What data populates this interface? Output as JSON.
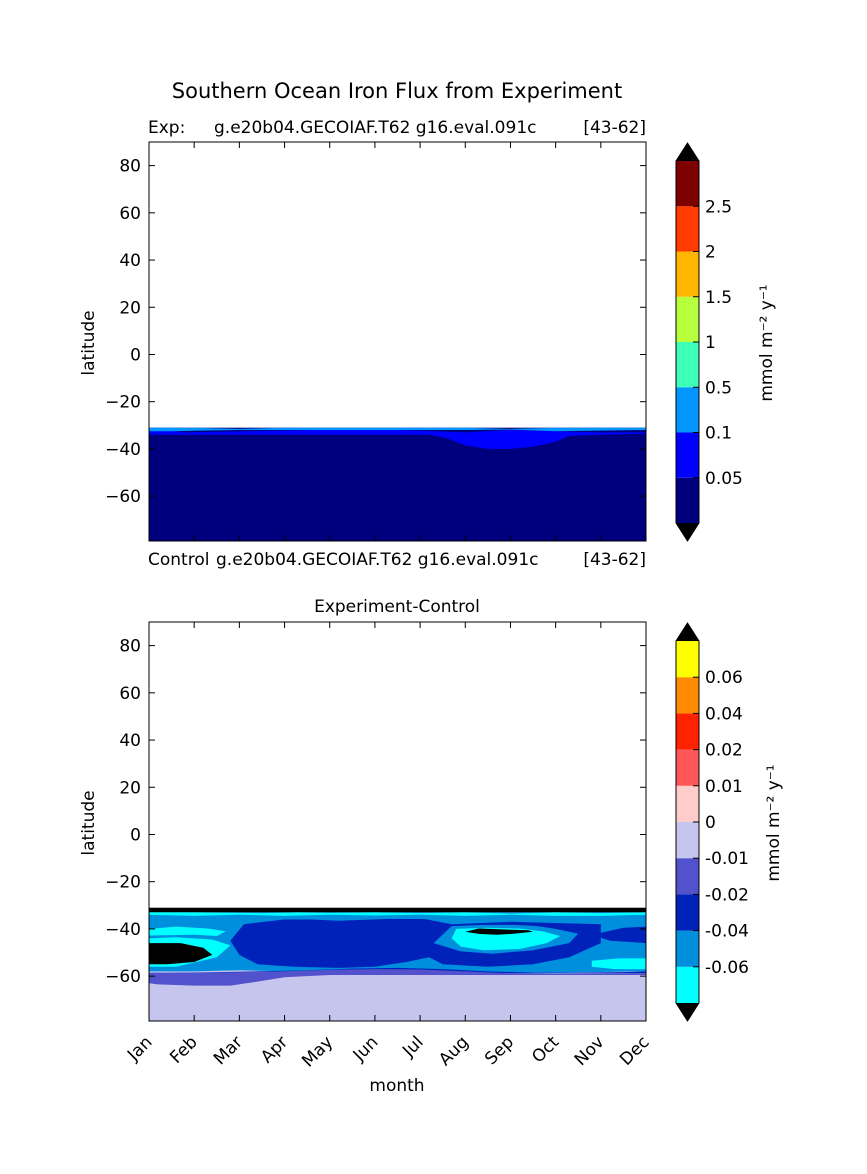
{
  "figure": {
    "suptitle": "Southern Ocean Iron Flux from Experiment"
  },
  "chart_data": [
    {
      "type": "heatmap",
      "panel": "top",
      "title_left": "Exp:",
      "title_center": "g.e20b04.GECOIAF.T62 g16.eval.091c",
      "title_right": "[43-62]",
      "xlabel": "",
      "ylabel": "latitude",
      "ylim": [
        -79,
        90
      ],
      "yticks": [
        "80",
        "60",
        "40",
        "20",
        "0",
        "−20",
        "−40",
        "−60"
      ],
      "ytick_values": [
        80,
        60,
        40,
        20,
        0,
        -20,
        -40,
        -60
      ],
      "x_months": [
        "Jan",
        "Feb",
        "Mar",
        "Apr",
        "May",
        "Jun",
        "Jul",
        "Aug",
        "Sep",
        "Oct",
        "Nov",
        "Dec"
      ],
      "data_extent_lat": [
        -79,
        -31
      ],
      "background_color": "#00007f",
      "regions": [
        {
          "color": "#0000ff",
          "top": [
            [
              1,
              -32
            ],
            [
              1.6,
              -32.5
            ],
            [
              1.8,
              -33
            ],
            [
              6,
              -31.5
            ],
            [
              7.3,
              -32.5
            ],
            [
              8,
              -33
            ],
            [
              9,
              -32
            ],
            [
              10,
              -32.5
            ],
            [
              11,
              -33
            ],
            [
              12,
              -33
            ]
          ],
          "bottom": [
            [
              12,
              -33.5
            ],
            [
              11,
              -34
            ],
            [
              10.3,
              -34.5
            ],
            [
              10,
              -37
            ],
            [
              9.5,
              -39
            ],
            [
              9,
              -40
            ],
            [
              8.5,
              -40
            ],
            [
              8,
              -38.5
            ],
            [
              7.6,
              -35.5
            ],
            [
              7.2,
              -34
            ],
            [
              1,
              -34
            ]
          ]
        },
        {
          "color": "#0095ff",
          "top": [
            [
              1,
              -31
            ],
            [
              2,
              -31
            ],
            [
              3,
              -31.5
            ],
            [
              4,
              -31
            ],
            [
              5,
              -31
            ],
            [
              6,
              -31
            ],
            [
              7,
              -31
            ],
            [
              8,
              -31
            ],
            [
              9,
              -31.5
            ],
            [
              10,
              -31
            ],
            [
              11,
              -31
            ],
            [
              12,
              -31
            ]
          ],
          "bottom": [
            [
              12,
              -32
            ],
            [
              10,
              -32.5
            ],
            [
              9,
              -31.8
            ],
            [
              8,
              -32
            ],
            [
              7,
              -32
            ],
            [
              5,
              -32
            ],
            [
              3,
              -32
            ],
            [
              2,
              -32.3
            ],
            [
              1.5,
              -32.5
            ],
            [
              1,
              -32.5
            ]
          ]
        }
      ],
      "colorbar": {
        "label": "mmol m⁻² y⁻¹",
        "extend": "both",
        "under_color": "#000000",
        "over_color": "#000000",
        "bins": [
          "#00007f",
          "#0000ff",
          "#0095ff",
          "#3effb8",
          "#b8ff3e",
          "#ffb600",
          "#ff3b00",
          "#7f0000"
        ],
        "boundary_labels": [
          "0.05",
          "0.1",
          "0.5",
          "1",
          "1.5",
          "2",
          "2.5"
        ]
      }
    },
    {
      "type": "heatmap",
      "panel": "bottom",
      "title_left": "Control",
      "title_center": "g.e20b04.GECOIAF.T62 g16.eval.091c",
      "title_right": "[43-62]",
      "subtitle": "Experiment-Control",
      "xlabel": "month",
      "ylabel": "latitude",
      "ylim": [
        -79,
        90
      ],
      "yticks": [
        "80",
        "60",
        "40",
        "20",
        "0",
        "−20",
        "−40",
        "−60"
      ],
      "ytick_values": [
        80,
        60,
        40,
        20,
        0,
        -20,
        -40,
        -60
      ],
      "x_months": [
        "Jan",
        "Feb",
        "Mar",
        "Apr",
        "May",
        "Jun",
        "Jul",
        "Aug",
        "Sep",
        "Oct",
        "Nov",
        "Dec"
      ],
      "data_extent_lat": [
        -79,
        -31
      ],
      "background_color": "#c5c5ee",
      "regions": [
        {
          "color": "#000000",
          "top": [
            [
              1,
              -31
            ],
            [
              12,
              -31
            ]
          ],
          "bottom": [
            [
              12,
              -33
            ],
            [
              1,
              -33
            ]
          ]
        },
        {
          "color": "#008fdd",
          "top": [
            [
              1,
              -33
            ],
            [
              12,
              -33
            ]
          ],
          "bottom": [
            [
              12,
              -58
            ],
            [
              10,
              -58.5
            ],
            [
              8,
              -58.5
            ],
            [
              6,
              -58
            ],
            [
              5,
              -58
            ],
            [
              4,
              -58
            ],
            [
              3,
              -57.5
            ],
            [
              2,
              -58
            ],
            [
              1,
              -58
            ]
          ]
        },
        {
          "color": "#00ffff",
          "top": [
            [
              1,
              -33
            ],
            [
              2,
              -33
            ],
            [
              3.5,
              -33.3
            ],
            [
              4.3,
              -33
            ],
            [
              5,
              -33.2
            ],
            [
              6,
              -33
            ],
            [
              7,
              -33.3
            ],
            [
              8,
              -33
            ],
            [
              9,
              -33.5
            ],
            [
              10,
              -33
            ],
            [
              11,
              -33.3
            ],
            [
              12,
              -33
            ]
          ],
          "bottom": [
            [
              12,
              -34
            ],
            [
              11,
              -34.5
            ],
            [
              10,
              -34.5
            ],
            [
              9,
              -34
            ],
            [
              8,
              -34.5
            ],
            [
              7,
              -34
            ],
            [
              6,
              -34.3
            ],
            [
              5,
              -34
            ],
            [
              4,
              -34.5
            ],
            [
              3,
              -34
            ],
            [
              2,
              -34.5
            ],
            [
              1,
              -34
            ]
          ]
        },
        {
          "color": "#00ffff",
          "top": [
            [
              1,
              -40
            ],
            [
              1.6,
              -39
            ],
            [
              2.3,
              -39.8
            ],
            [
              2.7,
              -41
            ],
            [
              2.5,
              -43
            ]
          ],
          "bottom": [
            [
              2,
              -42.5
            ],
            [
              1,
              -42.8
            ]
          ]
        },
        {
          "color": "#0022bb",
          "top": [
            [
              3.1,
              -38
            ],
            [
              4,
              -36
            ],
            [
              4.6,
              -36
            ],
            [
              5.2,
              -36.5
            ],
            [
              6.2,
              -35.8
            ],
            [
              7.1,
              -35.8
            ],
            [
              7.7,
              -38
            ],
            [
              9,
              -37
            ],
            [
              10,
              -37.5
            ],
            [
              11,
              -38
            ]
          ],
          "bottom": [
            [
              11,
              -46
            ],
            [
              10.3,
              -52
            ],
            [
              9.5,
              -55
            ],
            [
              8.5,
              -56
            ],
            [
              7.5,
              -55
            ],
            [
              7.2,
              -52
            ],
            [
              6.7,
              -54
            ],
            [
              6,
              -56
            ],
            [
              5.2,
              -56.5
            ],
            [
              4.2,
              -56
            ],
            [
              3.4,
              -55
            ],
            [
              3,
              -51
            ],
            [
              2.8,
              -45
            ]
          ]
        },
        {
          "color": "#008fdd",
          "top": [
            [
              7.7,
              -38.8
            ],
            [
              8.4,
              -38.3
            ],
            [
              9.1,
              -38.3
            ],
            [
              9.6,
              -38.8
            ],
            [
              10,
              -40
            ],
            [
              10.5,
              -42
            ],
            [
              10.3,
              -46
            ],
            [
              9.5,
              -49
            ]
          ],
          "bottom": [
            [
              8.6,
              -50.5
            ],
            [
              7.9,
              -49.5
            ],
            [
              7.3,
              -46
            ]
          ]
        },
        {
          "color": "#00ffff",
          "top": [
            [
              7.8,
              -40
            ],
            [
              8.5,
              -39.5
            ],
            [
              9.2,
              -39.8
            ],
            [
              9.7,
              -41
            ],
            [
              10.1,
              -43
            ],
            [
              9.8,
              -46
            ],
            [
              9.2,
              -48.5
            ]
          ],
          "bottom": [
            [
              8.4,
              -49
            ],
            [
              7.9,
              -47.5
            ],
            [
              7.7,
              -44
            ]
          ]
        },
        {
          "color": "#000000",
          "top": [
            [
              8.3,
              -39.8
            ],
            [
              8.8,
              -40.2
            ],
            [
              9.4,
              -40.6
            ],
            [
              9.5,
              -41.2
            ],
            [
              9.1,
              -42
            ]
          ],
          "bottom": [
            [
              8.7,
              -42.5
            ],
            [
              8.3,
              -42.1
            ],
            [
              8,
              -41.2
            ]
          ]
        },
        {
          "color": "#0022bb",
          "top": [
            [
              11.5,
              -39.5
            ],
            [
              12,
              -39
            ],
            [
              12,
              -46
            ]
          ],
          "bottom": [
            [
              11.2,
              -45
            ],
            [
              10.8,
              -42.5
            ]
          ]
        },
        {
          "color": "#00ffff",
          "top": [
            [
              1,
              -44
            ],
            [
              1.6,
              -43.5
            ],
            [
              2.4,
              -44.5
            ],
            [
              2.8,
              -47
            ]
          ],
          "bottom": [
            [
              2.5,
              -52
            ],
            [
              1.6,
              -56
            ],
            [
              1,
              -56
            ]
          ]
        },
        {
          "color": "#000000",
          "top": [
            [
              1,
              -46
            ],
            [
              1.7,
              -46
            ],
            [
              2.2,
              -48
            ],
            [
              2.4,
              -51
            ],
            [
              2,
              -54
            ]
          ],
          "bottom": [
            [
              1.4,
              -55
            ],
            [
              1,
              -55
            ]
          ]
        },
        {
          "color": "#00ffff",
          "top": [
            [
              10.8,
              -53.5
            ],
            [
              11.4,
              -52.5
            ],
            [
              12,
              -52.5
            ],
            [
              12,
              -57
            ]
          ],
          "bottom": [
            [
              11.3,
              -57
            ],
            [
              10.8,
              -56
            ]
          ]
        },
        {
          "color": "#0022bb",
          "top": [
            [
              3.4,
              -58
            ],
            [
              4.5,
              -57.5
            ],
            [
              5.5,
              -56.8
            ],
            [
              6.5,
              -56.5
            ],
            [
              7.5,
              -57
            ],
            [
              8.5,
              -58
            ],
            [
              9.5,
              -58.5
            ],
            [
              10.5,
              -58.5
            ],
            [
              11.5,
              -58.3
            ],
            [
              12,
              -58
            ]
          ],
          "bottom": [
            [
              12,
              -58.8
            ],
            [
              1,
              -58.8
            ]
          ]
        },
        {
          "color": "#5252cc",
          "top": [
            [
              1,
              -58.5
            ],
            [
              2,
              -58.5
            ],
            [
              3.5,
              -58.2
            ],
            [
              5,
              -57.3
            ],
            [
              6,
              -57
            ],
            [
              7,
              -57.2
            ],
            [
              8,
              -58
            ],
            [
              9,
              -58.8
            ],
            [
              10,
              -59
            ],
            [
              12,
              -58.8
            ]
          ],
          "bottom": [
            [
              12,
              -59.5
            ],
            [
              8,
              -59.5
            ],
            [
              5,
              -59.5
            ],
            [
              4,
              -60.5
            ],
            [
              3.5,
              -62
            ],
            [
              2.8,
              -64
            ],
            [
              2,
              -64
            ],
            [
              1.2,
              -63.5
            ],
            [
              1,
              -63
            ]
          ]
        }
      ],
      "colorbar": {
        "label": "mmol m⁻² y⁻¹",
        "extend": "both",
        "under_color": "#000000",
        "over_color": "#000000",
        "bins": [
          "#00ffff",
          "#008fdd",
          "#0022bb",
          "#5252cc",
          "#c5c5ee",
          "#ffcccc",
          "#ff5757",
          "#ff2200",
          "#ff8c00",
          "#ffff00"
        ],
        "boundary_labels": [
          "-0.06",
          "-0.04",
          "-0.02",
          "-0.01",
          "0",
          "0.01",
          "0.02",
          "0.04",
          "0.06"
        ]
      }
    }
  ]
}
